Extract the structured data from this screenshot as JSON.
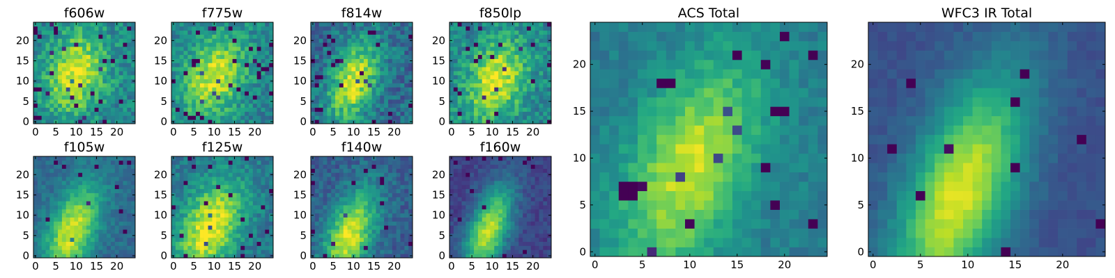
{
  "chart_data": [
    {
      "type": "heatmap",
      "title": "f606w",
      "xticks": [
        "0",
        "5",
        "10",
        "15",
        "20"
      ],
      "yticks": [
        "0",
        "5",
        "10",
        "15",
        "20"
      ],
      "xlim": [
        -0.5,
        24.5
      ],
      "ylim": [
        -0.5,
        24.5
      ],
      "grid_size": 25,
      "colormap": "viridis",
      "peak": [
        10,
        12
      ],
      "sigma": [
        5,
        7
      ],
      "tilt": 0.15,
      "base": 0.45,
      "amp": 0.5,
      "noise": 0.3,
      "outlier_rate": 0.05,
      "seed": 11
    },
    {
      "type": "heatmap",
      "title": "f775w",
      "xticks": [
        "0",
        "5",
        "10",
        "15",
        "20"
      ],
      "yticks": [
        "0",
        "5",
        "10",
        "15",
        "20"
      ],
      "xlim": [
        -0.5,
        24.5
      ],
      "ylim": [
        -0.5,
        24.5
      ],
      "grid_size": 25,
      "colormap": "viridis",
      "peak": [
        10,
        11
      ],
      "sigma": [
        5,
        7
      ],
      "tilt": 0.2,
      "base": 0.45,
      "amp": 0.5,
      "noise": 0.28,
      "outlier_rate": 0.05,
      "seed": 23
    },
    {
      "type": "heatmap",
      "title": "f814w",
      "xticks": [
        "0",
        "5",
        "10",
        "15",
        "20"
      ],
      "yticks": [
        "0",
        "5",
        "10",
        "15",
        "20"
      ],
      "xlim": [
        -0.5,
        24.5
      ],
      "ylim": [
        -0.5,
        24.5
      ],
      "grid_size": 25,
      "colormap": "viridis",
      "peak": [
        10,
        10
      ],
      "sigma": [
        4,
        7
      ],
      "tilt": 0.25,
      "base": 0.35,
      "amp": 0.6,
      "noise": 0.3,
      "outlier_rate": 0.05,
      "seed": 37
    },
    {
      "type": "heatmap",
      "title": "f850lp",
      "xticks": [
        "0",
        "5",
        "10",
        "15",
        "20"
      ],
      "yticks": [
        "0",
        "5",
        "10",
        "15",
        "20"
      ],
      "xlim": [
        -0.5,
        24.5
      ],
      "ylim": [
        -0.5,
        24.5
      ],
      "grid_size": 25,
      "colormap": "viridis",
      "peak": [
        11,
        10
      ],
      "sigma": [
        5,
        7
      ],
      "tilt": 0.2,
      "base": 0.45,
      "amp": 0.5,
      "noise": 0.3,
      "outlier_rate": 0.05,
      "seed": 41
    },
    {
      "type": "heatmap",
      "title": "f105w",
      "xticks": [
        "0",
        "5",
        "10",
        "15",
        "20"
      ],
      "yticks": [
        "0",
        "5",
        "10",
        "15",
        "20"
      ],
      "xlim": [
        -0.5,
        24.5
      ],
      "ylim": [
        -0.5,
        24.5
      ],
      "grid_size": 25,
      "colormap": "viridis",
      "peak": [
        9,
        6
      ],
      "sigma": [
        4,
        8
      ],
      "tilt": 0.3,
      "base": 0.35,
      "amp": 0.6,
      "noise": 0.16,
      "outlier_rate": 0.02,
      "seed": 53
    },
    {
      "type": "heatmap",
      "title": "f125w",
      "xticks": [
        "0",
        "5",
        "10",
        "15",
        "20"
      ],
      "yticks": [
        "0",
        "5",
        "10",
        "15",
        "20"
      ],
      "xlim": [
        -0.5,
        24.5
      ],
      "ylim": [
        -0.5,
        24.5
      ],
      "grid_size": 25,
      "colormap": "viridis",
      "peak": [
        9,
        7
      ],
      "sigma": [
        5,
        8
      ],
      "tilt": 0.3,
      "base": 0.4,
      "amp": 0.6,
      "noise": 0.22,
      "outlier_rate": 0.03,
      "seed": 67
    },
    {
      "type": "heatmap",
      "title": "f140w",
      "xticks": [
        "0",
        "5",
        "10",
        "15",
        "20"
      ],
      "yticks": [
        "0",
        "5",
        "10",
        "15",
        "20"
      ],
      "xlim": [
        -0.5,
        24.5
      ],
      "ylim": [
        -0.5,
        24.5
      ],
      "grid_size": 25,
      "colormap": "viridis",
      "peak": [
        9,
        5
      ],
      "sigma": [
        4,
        8
      ],
      "tilt": 0.3,
      "base": 0.3,
      "amp": 0.65,
      "noise": 0.2,
      "outlier_rate": 0.03,
      "seed": 79
    },
    {
      "type": "heatmap",
      "title": "f160w",
      "xticks": [
        "0",
        "5",
        "10",
        "15",
        "20"
      ],
      "yticks": [
        "0",
        "5",
        "10",
        "15",
        "20"
      ],
      "xlim": [
        -0.5,
        24.5
      ],
      "ylim": [
        -0.5,
        24.5
      ],
      "grid_size": 25,
      "colormap": "viridis",
      "peak": [
        9,
        6
      ],
      "sigma": [
        3.5,
        8
      ],
      "tilt": 0.3,
      "base": 0.2,
      "amp": 0.7,
      "noise": 0.14,
      "outlier_rate": 0.02,
      "seed": 97
    },
    {
      "type": "heatmap",
      "title": "ACS Total",
      "xticks": [
        "0",
        "5",
        "10",
        "15",
        "20"
      ],
      "yticks": [
        "0",
        "5",
        "10",
        "15",
        "20"
      ],
      "xlim": [
        -0.5,
        24.5
      ],
      "ylim": [
        -0.5,
        24.5
      ],
      "grid_size": 25,
      "colormap": "viridis",
      "peak": [
        10,
        9
      ],
      "sigma": [
        4.5,
        8
      ],
      "tilt": 0.3,
      "base": 0.42,
      "amp": 0.5,
      "noise": 0.15,
      "outlier_rate": 0.04,
      "seed": 101
    },
    {
      "type": "heatmap",
      "title": "WFC3 IR Total",
      "xticks": [
        "0",
        "5",
        "10",
        "15",
        "20"
      ],
      "yticks": [
        "0",
        "5",
        "10",
        "15",
        "20"
      ],
      "xlim": [
        -0.5,
        24.5
      ],
      "ylim": [
        -0.5,
        24.5
      ],
      "grid_size": 25,
      "colormap": "viridis",
      "peak": [
        9,
        6
      ],
      "sigma": [
        4,
        9
      ],
      "tilt": 0.32,
      "base": 0.25,
      "amp": 0.7,
      "noise": 0.08,
      "outlier_rate": 0.02,
      "seed": 131
    }
  ]
}
